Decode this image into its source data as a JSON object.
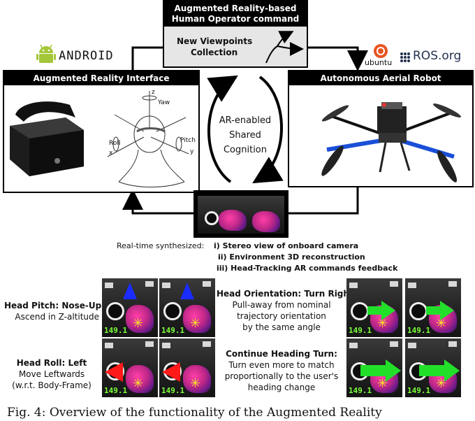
{
  "top_box": {
    "title_line1": "Augmented Reality-based",
    "title_line2": "Human Operator command",
    "content_line1": "New Viewpoints",
    "content_line2": "Collection"
  },
  "left_box": {
    "title": "Augmented Reality Interface"
  },
  "right_box": {
    "title": "Autonomous Aerial Robot"
  },
  "logos": {
    "android": "android",
    "ubuntu": "ubuntu",
    "ros": "ROS.org"
  },
  "head_labels": {
    "z": "z",
    "yaw": "Yaw",
    "roll": "Roll",
    "pitch": "Pitch",
    "x": "x",
    "y": "y"
  },
  "center": {
    "line1": "AR-enabled",
    "line2": "Shared",
    "line3": "Cognition"
  },
  "synth": {
    "lead": "Real-time synthesized:",
    "item1": "i) Stereo view of onboard camera",
    "item2": "ii) Environment 3D reconstruction",
    "item3": "iii) Head-Tracking AR commands feedback"
  },
  "rows": [
    {
      "title": "Head Pitch: Nose-Up",
      "desc1": "Ascend in Z-altitude",
      "desc2": ""
    },
    {
      "title": "Head Roll: Left",
      "desc1": "Move Leftwards",
      "desc2": "(w.r.t. Body-Frame)"
    }
  ],
  "right_notes": [
    {
      "title": "Head Orientation: Turn Right",
      "l1": "Pull-away from nominal",
      "l2": "trajectory orientation",
      "l3": "by the same angle"
    },
    {
      "title": "Continue Heading Turn:",
      "l1": "Turn even more to match",
      "l2": "proportionally to the user's",
      "l3": "heading change"
    }
  ],
  "cam_value": "149.1",
  "caption": "Fig. 4: Overview of the functionality of the Augmented Reality",
  "colors": {
    "arrow_blue": "#1a2cff",
    "arrow_red": "#ff1a1a",
    "arrow_green": "#22e02a"
  }
}
